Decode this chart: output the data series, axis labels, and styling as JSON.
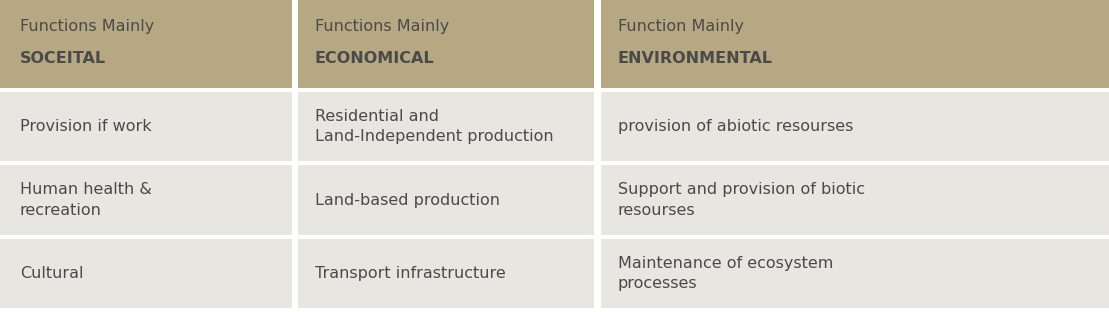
{
  "header_bg_color": "#b5a882",
  "row_bg_color": "#e8e6e1",
  "divider_color": "#ffffff",
  "text_color": "#4a4a4a",
  "header_normal_text": [
    "Functions Mainly",
    "Functions Mainly",
    "Function Mainly"
  ],
  "header_bold_text": [
    "SOCEITAL",
    "ECONOMICAL",
    "ENVIRONMENTAL"
  ],
  "rows": [
    [
      "Provision if work",
      "Residential and\nLand-Independent production",
      "provision of abiotic resourses"
    ],
    [
      "Human health &\nrecreation",
      "Land-based production",
      "Support and provision of biotic\nresourses"
    ],
    [
      "Cultural",
      "Transport infrastructure",
      "Maintenance of ecosystem\nprocesses"
    ]
  ],
  "header_fontsize": 11.5,
  "body_fontsize": 11.5,
  "fig_width": 11.09,
  "fig_height": 3.12,
  "dpi": 100
}
